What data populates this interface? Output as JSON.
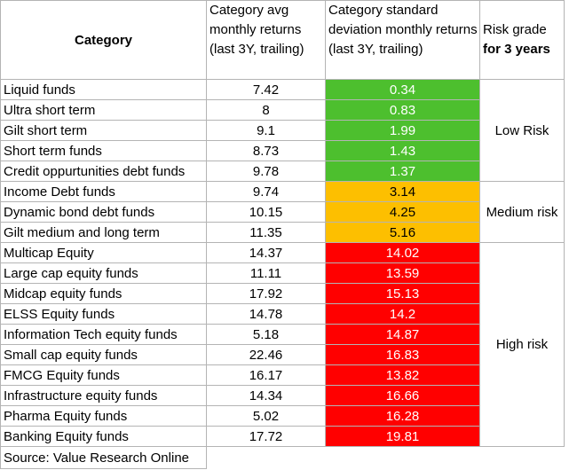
{
  "headers": {
    "category": "Category",
    "avg_returns": "Category avg monthly returns (last 3Y, trailing)",
    "std_dev": "Category standard deviation monthly returns (last 3Y, trailing)",
    "risk_grade_line1": "Risk grade",
    "risk_grade_line2": "for 3 years"
  },
  "rows": [
    {
      "name": "Liquid funds",
      "avg": "7.42",
      "sd": "0.34",
      "band": "low"
    },
    {
      "name": "Ultra short term",
      "avg": "8",
      "sd": "0.83",
      "band": "low"
    },
    {
      "name": "Gilt short term",
      "avg": "9.1",
      "sd": "1.99",
      "band": "low"
    },
    {
      "name": "Short term funds",
      "avg": "8.73",
      "sd": "1.43",
      "band": "low"
    },
    {
      "name": "Credit oppurtunities debt funds",
      "avg": "9.78",
      "sd": "1.37",
      "band": "low"
    },
    {
      "name": "Income Debt funds",
      "avg": "9.74",
      "sd": "3.14",
      "band": "medium"
    },
    {
      "name": "Dynamic bond debt funds",
      "avg": "10.15",
      "sd": "4.25",
      "band": "medium"
    },
    {
      "name": "Gilt medium and long term",
      "avg": "11.35",
      "sd": "5.16",
      "band": "medium"
    },
    {
      "name": "Multicap Equity",
      "avg": "14.37",
      "sd": "14.02",
      "band": "high"
    },
    {
      "name": "Large cap equity funds",
      "avg": "11.11",
      "sd": "13.59",
      "band": "high"
    },
    {
      "name": "Midcap equity funds",
      "avg": "17.92",
      "sd": "15.13",
      "band": "high"
    },
    {
      "name": "ELSS Equity funds",
      "avg": "14.78",
      "sd": "14.2",
      "band": "high"
    },
    {
      "name": "Information Tech equity funds",
      "avg": "5.18",
      "sd": "14.87",
      "band": "high"
    },
    {
      "name": "Small cap equity funds",
      "avg": "22.46",
      "sd": "16.83",
      "band": "high"
    },
    {
      "name": "FMCG Equity funds",
      "avg": "16.17",
      "sd": "13.82",
      "band": "high"
    },
    {
      "name": "Infrastructure equity funds",
      "avg": "14.34",
      "sd": "16.66",
      "band": "high"
    },
    {
      "name": "Pharma Equity funds",
      "avg": "5.02",
      "sd": "16.28",
      "band": "high"
    },
    {
      "name": "Banking Equity funds",
      "avg": "17.72",
      "sd": "19.81",
      "band": "high"
    }
  ],
  "risk_grades": {
    "low": "Low Risk",
    "medium": "Medium risk",
    "high": "High risk"
  },
  "band_colors": {
    "low": "#4dbf2e",
    "medium": "#fdbf00",
    "high": "#ff0000"
  },
  "source": "Source: Value Research Online"
}
